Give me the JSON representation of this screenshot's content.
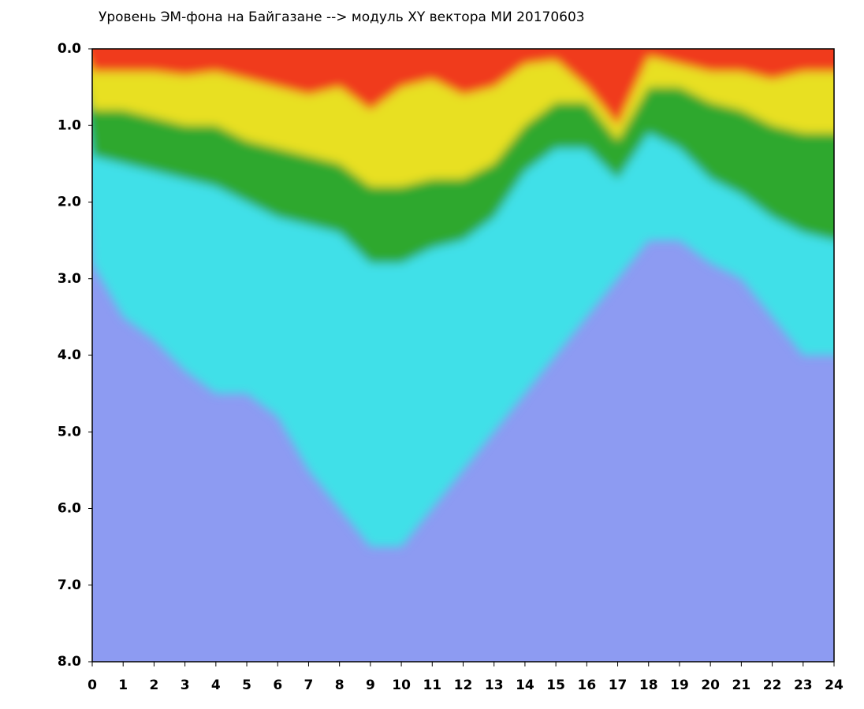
{
  "chart_data": {
    "type": "area",
    "title": "Уровень ЭМ-фона на Байгазане  --> модуль XY вектора МИ  20170603",
    "plot_color": "#8d9bf2",
    "x": [
      0,
      1,
      2,
      3,
      4,
      5,
      6,
      7,
      8,
      9,
      10,
      11,
      12,
      13,
      14,
      15,
      16,
      17,
      18,
      19,
      20,
      21,
      22,
      23,
      24
    ],
    "series": [
      {
        "color": "#3fe0e8",
        "values": [
          2.8,
          3.5,
          3.8,
          4.2,
          4.5,
          4.5,
          4.8,
          5.5,
          6.0,
          6.5,
          6.5,
          6.0,
          5.5,
          5.0,
          4.5,
          4.0,
          3.5,
          3.0,
          2.5,
          2.5,
          2.8,
          3.0,
          3.5,
          4.0,
          4.0
        ]
      },
      {
        "color": "#2ea82e",
        "values": [
          1.4,
          1.5,
          1.6,
          1.7,
          1.8,
          2.0,
          2.2,
          2.3,
          2.4,
          2.8,
          2.8,
          2.6,
          2.5,
          2.2,
          1.6,
          1.3,
          1.3,
          1.7,
          1.1,
          1.3,
          1.7,
          1.9,
          2.2,
          2.4,
          2.5
        ]
      },
      {
        "color": "#e8e020",
        "values": [
          0.8,
          0.8,
          0.9,
          1.0,
          1.0,
          1.2,
          1.3,
          1.4,
          1.5,
          1.8,
          1.8,
          1.7,
          1.7,
          1.5,
          1.0,
          0.7,
          0.7,
          1.2,
          0.5,
          0.5,
          0.7,
          0.8,
          1.0,
          1.1,
          1.1
        ]
      },
      {
        "color": "#f03a1a",
        "values": [
          0.3,
          0.3,
          0.3,
          0.35,
          0.3,
          0.4,
          0.5,
          0.6,
          0.5,
          0.8,
          0.5,
          0.4,
          0.6,
          0.5,
          0.2,
          0.15,
          0.5,
          1.0,
          0.1,
          0.2,
          0.3,
          0.3,
          0.4,
          0.3,
          0.3
        ]
      }
    ],
    "xlim": [
      0,
      24
    ],
    "xticks": [
      0,
      1,
      2,
      3,
      4,
      5,
      6,
      7,
      8,
      9,
      10,
      11,
      12,
      13,
      14,
      15,
      16,
      17,
      18,
      19,
      20,
      21,
      22,
      23,
      24
    ],
    "ylim": [
      0,
      8
    ],
    "y_inverted": true,
    "yticks": [
      {
        "value": 0,
        "label": "0.0"
      },
      {
        "value": 1,
        "label": "1.0"
      },
      {
        "value": 2,
        "label": "2.0"
      },
      {
        "value": 3,
        "label": "3.0"
      },
      {
        "value": 4,
        "label": "4.0"
      },
      {
        "value": 5,
        "label": "5.0"
      },
      {
        "value": 6,
        "label": "6.0"
      },
      {
        "value": 7,
        "label": "7.0"
      },
      {
        "value": 8,
        "label": "8.0"
      }
    ]
  }
}
